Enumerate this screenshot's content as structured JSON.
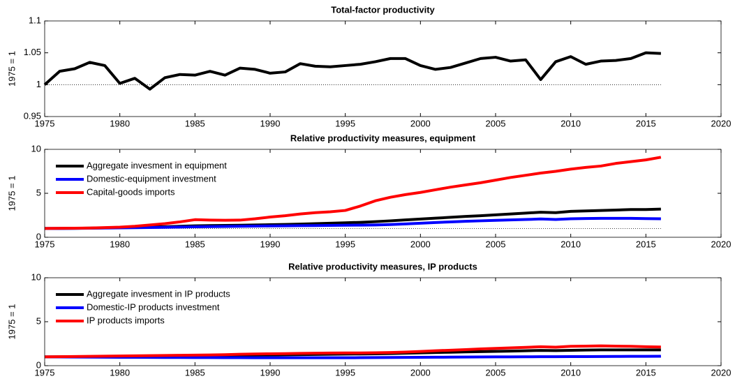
{
  "chart_data": [
    {
      "type": "line",
      "title": "Total-factor productivity",
      "y_label": "1975 = 1",
      "x": [
        1975,
        1976,
        1977,
        1978,
        1979,
        1980,
        1981,
        1982,
        1983,
        1984,
        1985,
        1986,
        1987,
        1988,
        1989,
        1990,
        1991,
        1992,
        1993,
        1994,
        1995,
        1996,
        1997,
        1998,
        1999,
        2000,
        2001,
        2002,
        2003,
        2004,
        2005,
        2006,
        2007,
        2008,
        2009,
        2010,
        2011,
        2012,
        2013,
        2014,
        2015,
        2016
      ],
      "series": [
        {
          "name": "Total-factor productivity",
          "color": "#000000",
          "values": [
            1.0,
            1.021,
            1.025,
            1.035,
            1.03,
            1.002,
            1.01,
            0.993,
            1.011,
            1.016,
            1.015,
            1.021,
            1.015,
            1.026,
            1.024,
            1.018,
            1.02,
            1.033,
            1.029,
            1.028,
            1.03,
            1.032,
            1.036,
            1.041,
            1.041,
            1.03,
            1.024,
            1.027,
            1.034,
            1.041,
            1.043,
            1.037,
            1.039,
            1.008,
            1.036,
            1.044,
            1.032,
            1.037,
            1.038,
            1.041,
            1.05,
            1.049
          ]
        }
      ],
      "reference_line": 1,
      "xlim": [
        1975,
        2020
      ],
      "xticks": [
        1975,
        1980,
        1985,
        1990,
        1995,
        2000,
        2005,
        2010,
        2015,
        2020
      ],
      "ylim": [
        0.95,
        1.1
      ],
      "yticks": [
        0.95,
        1,
        1.05,
        1.1
      ],
      "legend": false
    },
    {
      "type": "line",
      "title": "Relative productivity measures, equipment",
      "y_label": "1975 = 1",
      "x": [
        1975,
        1976,
        1977,
        1978,
        1979,
        1980,
        1981,
        1982,
        1983,
        1984,
        1985,
        1986,
        1987,
        1988,
        1989,
        1990,
        1991,
        1992,
        1993,
        1994,
        1995,
        1996,
        1997,
        1998,
        1999,
        2000,
        2001,
        2002,
        2003,
        2004,
        2005,
        2006,
        2007,
        2008,
        2009,
        2010,
        2011,
        2012,
        2013,
        2014,
        2015,
        2016
      ],
      "series": [
        {
          "name": "Aggregate invesment in equipment",
          "color": "#000000",
          "values": [
            1,
            1.0,
            1.02,
            1.04,
            1.07,
            1.1,
            1.13,
            1.17,
            1.2,
            1.25,
            1.3,
            1.33,
            1.35,
            1.37,
            1.4,
            1.43,
            1.46,
            1.5,
            1.55,
            1.6,
            1.65,
            1.7,
            1.78,
            1.87,
            1.97,
            2.07,
            2.17,
            2.27,
            2.37,
            2.45,
            2.55,
            2.65,
            2.75,
            2.85,
            2.8,
            2.95,
            3.0,
            3.05,
            3.1,
            3.15,
            3.15,
            3.2
          ]
        },
        {
          "name": "Domestic-equipment investment",
          "color": "#0000ff",
          "values": [
            1,
            1,
            1.01,
            1.03,
            1.05,
            1.07,
            1.09,
            1.11,
            1.13,
            1.16,
            1.19,
            1.21,
            1.23,
            1.25,
            1.27,
            1.29,
            1.3,
            1.32,
            1.33,
            1.35,
            1.37,
            1.38,
            1.4,
            1.45,
            1.52,
            1.6,
            1.68,
            1.75,
            1.82,
            1.87,
            1.92,
            1.97,
            2.02,
            2.08,
            2.02,
            2.1,
            2.13,
            2.15,
            2.15,
            2.15,
            2.12,
            2.1
          ]
        },
        {
          "name": "Capital-goods imports",
          "color": "#ff0000",
          "values": [
            1.0,
            1.02,
            1.03,
            1.05,
            1.1,
            1.15,
            1.25,
            1.4,
            1.55,
            1.75,
            2.0,
            1.95,
            1.93,
            1.95,
            2.1,
            2.3,
            2.45,
            2.65,
            2.8,
            2.9,
            3.05,
            3.55,
            4.15,
            4.55,
            4.85,
            5.1,
            5.4,
            5.7,
            5.95,
            6.2,
            6.5,
            6.8,
            7.05,
            7.3,
            7.5,
            7.75,
            7.95,
            8.1,
            8.4,
            8.6,
            8.8,
            9.1
          ]
        }
      ],
      "reference_line": 1,
      "xlim": [
        1975,
        2020
      ],
      "xticks": [
        1975,
        1980,
        1985,
        1990,
        1995,
        2000,
        2005,
        2010,
        2015,
        2020
      ],
      "ylim": [
        0,
        10
      ],
      "yticks": [
        0,
        5,
        10
      ],
      "legend": "upper left"
    },
    {
      "type": "line",
      "title": "Relative productivity measures, IP products",
      "y_label": "1975 = 1",
      "x": [
        1975,
        1976,
        1977,
        1978,
        1979,
        1980,
        1981,
        1982,
        1983,
        1984,
        1985,
        1986,
        1987,
        1988,
        1989,
        1990,
        1991,
        1992,
        1993,
        1994,
        1995,
        1996,
        1997,
        1998,
        1999,
        2000,
        2001,
        2002,
        2003,
        2004,
        2005,
        2006,
        2007,
        2008,
        2009,
        2010,
        2011,
        2012,
        2013,
        2014,
        2015,
        2016
      ],
      "series": [
        {
          "name": "Aggregate invesment in IP products",
          "color": "#000000",
          "values": [
            1,
            1.01,
            1.02,
            1.03,
            1.04,
            1.05,
            1.06,
            1.07,
            1.08,
            1.1,
            1.12,
            1.14,
            1.16,
            1.18,
            1.2,
            1.22,
            1.24,
            1.26,
            1.28,
            1.3,
            1.32,
            1.33,
            1.35,
            1.38,
            1.42,
            1.46,
            1.5,
            1.53,
            1.57,
            1.6,
            1.63,
            1.66,
            1.7,
            1.74,
            1.72,
            1.75,
            1.78,
            1.8,
            1.8,
            1.8,
            1.8,
            1.8
          ]
        },
        {
          "name": "Domestic-IP products investment",
          "color": "#0000ff",
          "values": [
            1,
            0.99,
            0.98,
            0.97,
            0.96,
            0.95,
            0.95,
            0.94,
            0.93,
            0.93,
            0.92,
            0.92,
            0.91,
            0.91,
            0.9,
            0.9,
            0.9,
            0.9,
            0.9,
            0.9,
            0.9,
            0.91,
            0.92,
            0.93,
            0.94,
            0.95,
            0.96,
            0.97,
            0.98,
            0.99,
            1.0,
            1.0,
            1.01,
            1.02,
            1.02,
            1.03,
            1.03,
            1.04,
            1.05,
            1.06,
            1.06,
            1.07
          ]
        },
        {
          "name": "IP products imports",
          "color": "#ff0000",
          "values": [
            1,
            1.02,
            1.04,
            1.06,
            1.08,
            1.1,
            1.12,
            1.14,
            1.16,
            1.18,
            1.2,
            1.22,
            1.25,
            1.3,
            1.33,
            1.35,
            1.37,
            1.4,
            1.42,
            1.44,
            1.45,
            1.45,
            1.47,
            1.5,
            1.55,
            1.62,
            1.7,
            1.76,
            1.83,
            1.9,
            1.96,
            2.02,
            2.08,
            2.15,
            2.1,
            2.2,
            2.22,
            2.25,
            2.22,
            2.2,
            2.15,
            2.12
          ]
        }
      ],
      "reference_line": 1,
      "xlim": [
        1975,
        2020
      ],
      "xticks": [
        1975,
        1980,
        1985,
        1990,
        1995,
        2000,
        2005,
        2010,
        2015,
        2020
      ],
      "ylim": [
        0,
        10
      ],
      "yticks": [
        0,
        5,
        10
      ],
      "legend": "upper left"
    }
  ]
}
